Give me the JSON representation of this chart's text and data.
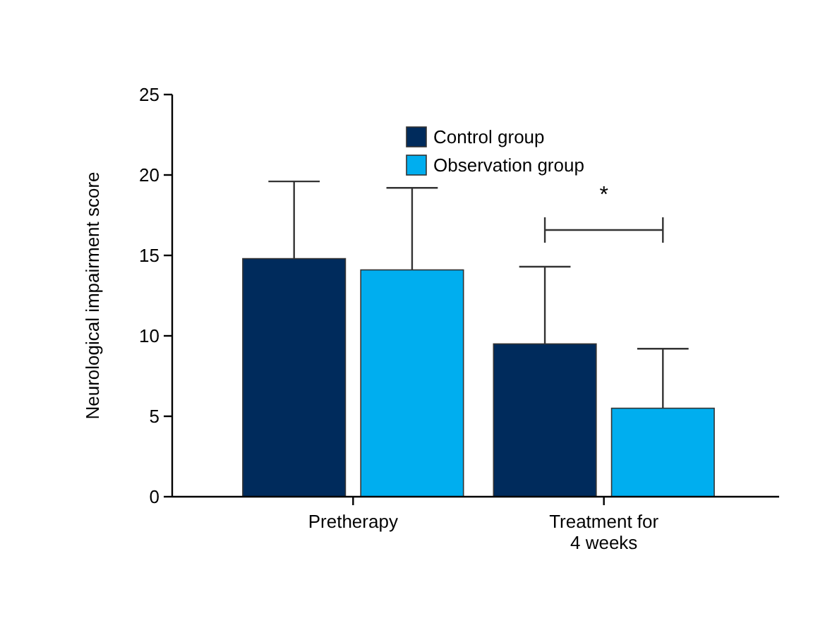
{
  "chart_data": {
    "type": "bar",
    "ylabel": "Neurological impairment score",
    "categories": [
      "Pretherapy",
      "Treatment for\n4 weeks"
    ],
    "series": [
      {
        "name": "Control group",
        "color": "#002b5c",
        "values": [
          14.8,
          9.5
        ],
        "errors": [
          [
            14.8,
            19.6
          ],
          [
            9.5,
            14.3
          ]
        ]
      },
      {
        "name": "Observation group",
        "color": "#00aeef",
        "values": [
          14.1,
          5.5
        ],
        "errors": [
          [
            14.1,
            19.2
          ],
          [
            5.5,
            9.2
          ]
        ]
      }
    ],
    "ylim": [
      0,
      25
    ],
    "yticks": [
      0,
      5,
      10,
      15,
      20,
      25
    ],
    "grid": false,
    "legend": "top",
    "annotations": [
      "*"
    ]
  }
}
